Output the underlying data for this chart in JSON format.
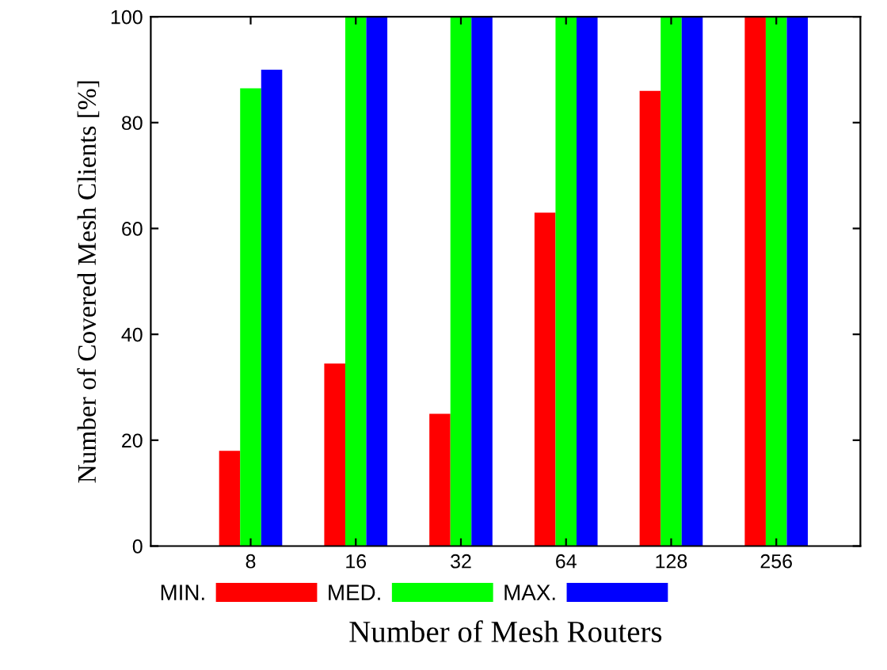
{
  "chart_data": {
    "type": "bar",
    "xlabel": "Number of Mesh Routers",
    "ylabel": "Number of Covered Mesh Clients [%]",
    "categories": [
      "8",
      "16",
      "32",
      "64",
      "128",
      "256"
    ],
    "series": [
      {
        "name": "MIN.",
        "color": "#ff0000",
        "values": [
          18,
          34.5,
          25,
          63,
          86,
          100
        ]
      },
      {
        "name": "MED.",
        "color": "#00ff00",
        "values": [
          86.5,
          100,
          100,
          100,
          100,
          100
        ]
      },
      {
        "name": "MAX.",
        "color": "#0000ff",
        "values": [
          90,
          100,
          100,
          100,
          100,
          100
        ]
      }
    ],
    "ylim": [
      0,
      100
    ],
    "yticks": [
      0,
      20,
      40,
      60,
      80,
      100
    ],
    "grid": false,
    "legend": "bottom"
  }
}
